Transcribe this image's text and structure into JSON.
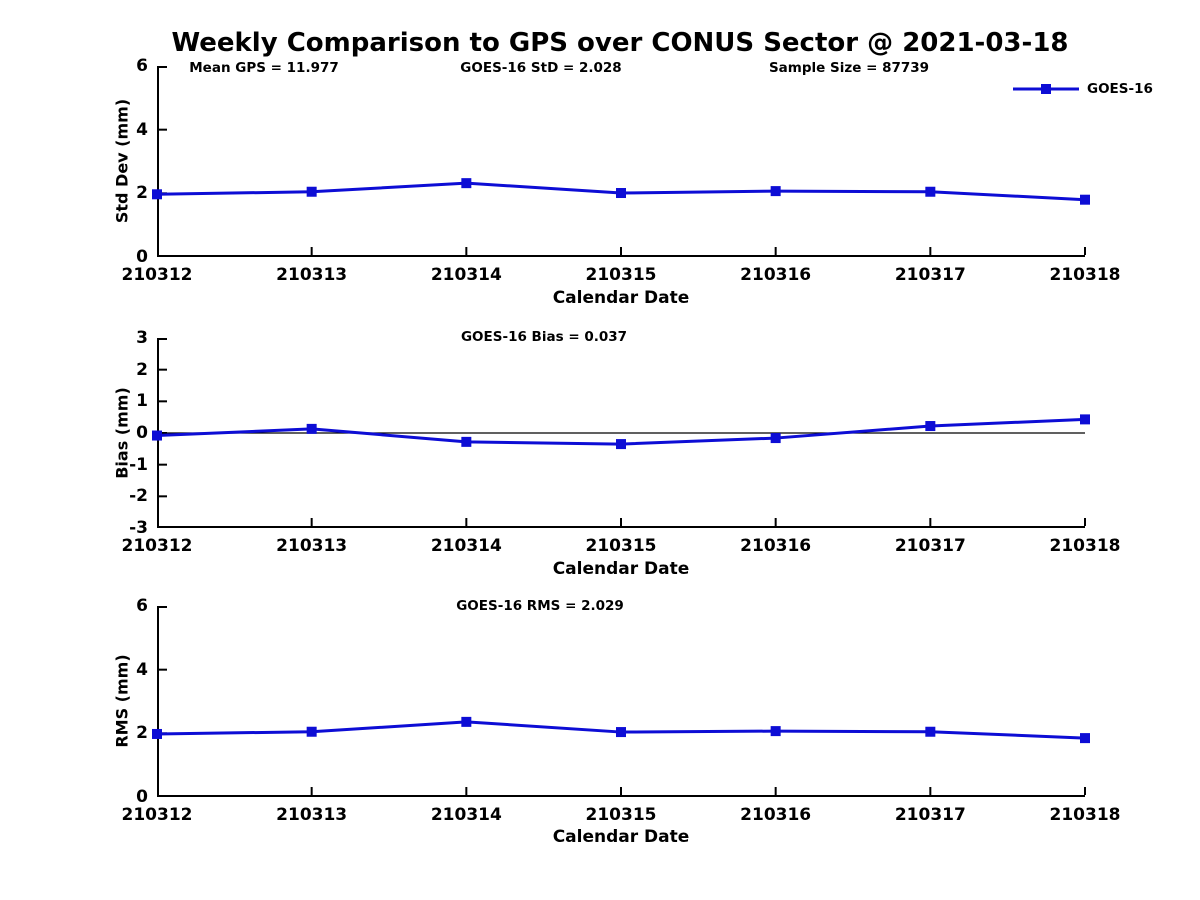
{
  "title": "Weekly Comparison to GPS over CONUS Sector @ 2021-03-18",
  "legend": {
    "label": "GOES-16"
  },
  "colors": {
    "line": "#0d0dd5",
    "axis": "#000000",
    "text": "#000000",
    "background": "#ffffff"
  },
  "chart_data": [
    {
      "type": "line",
      "panel": "std_dev",
      "categories": [
        "210312",
        "210313",
        "210314",
        "210315",
        "210316",
        "210317",
        "210318"
      ],
      "series": [
        {
          "name": "GOES-16",
          "values": [
            1.97,
            2.05,
            2.32,
            2.01,
            2.07,
            2.05,
            1.8
          ]
        }
      ],
      "ylabel": "Std Dev (mm)",
      "xlabel": "Calendar Date",
      "ylim": [
        0,
        6
      ],
      "yticks": [
        0,
        2,
        4,
        6
      ],
      "grid": false,
      "zero_line": false,
      "legend_position": "top-right",
      "annotations": [
        "Mean GPS = 11.977",
        "GOES-16 StD = 2.028",
        "Sample Size = 87739"
      ]
    },
    {
      "type": "line",
      "panel": "bias",
      "categories": [
        "210312",
        "210313",
        "210314",
        "210315",
        "210316",
        "210317",
        "210318"
      ],
      "series": [
        {
          "name": "GOES-16",
          "values": [
            -0.08,
            0.13,
            -0.28,
            -0.35,
            -0.16,
            0.22,
            0.43
          ]
        }
      ],
      "ylabel": "Bias (mm)",
      "xlabel": "Calendar Date",
      "ylim": [
        -3,
        3
      ],
      "yticks": [
        3,
        2,
        1,
        0,
        -1,
        -2,
        -3
      ],
      "grid": false,
      "zero_line": true,
      "annotations": [
        "GOES-16 Bias  = 0.037"
      ]
    },
    {
      "type": "line",
      "panel": "rms",
      "categories": [
        "210312",
        "210313",
        "210314",
        "210315",
        "210316",
        "210317",
        "210318"
      ],
      "series": [
        {
          "name": "GOES-16",
          "values": [
            1.98,
            2.05,
            2.36,
            2.04,
            2.07,
            2.05,
            1.85
          ]
        }
      ],
      "ylabel": "RMS (mm)",
      "xlabel": "Calendar Date",
      "ylim": [
        0,
        6
      ],
      "yticks": [
        0,
        2,
        4,
        6
      ],
      "grid": false,
      "zero_line": false,
      "annotations": [
        "GOES-16 RMS = 2.029"
      ]
    }
  ]
}
